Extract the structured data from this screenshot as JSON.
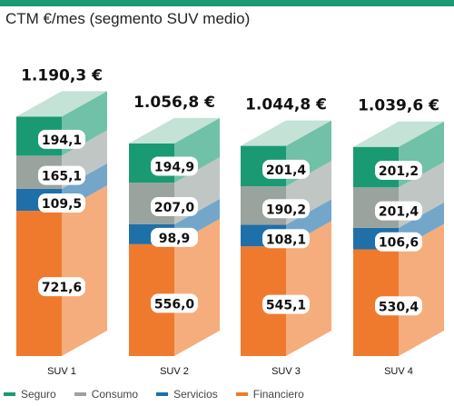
{
  "title": "CTM €/mes (segmento SUV medio)",
  "chart_data": {
    "type": "bar",
    "stacked": true,
    "categories": [
      "SUV 1",
      "SUV 2",
      "SUV 3",
      "SUV 4"
    ],
    "totals": [
      "1.190,3 €",
      "1.056,8 €",
      "1.044,8 €",
      "1.039,6 €"
    ],
    "series": [
      {
        "name": "Seguro",
        "color": "#1a9a73",
        "values": [
          194.1,
          194.9,
          201.4,
          201.2
        ],
        "labels": [
          "194,1",
          "194,9",
          "201,4",
          "201,2"
        ]
      },
      {
        "name": "Consumo",
        "color": "#9aa39e",
        "values": [
          165.1,
          207.0,
          190.2,
          201.4
        ],
        "labels": [
          "165,1",
          "207,0",
          "190,2",
          "201,4"
        ]
      },
      {
        "name": "Servicios",
        "color": "#1f6fa8",
        "values": [
          109.5,
          98.9,
          108.1,
          106.6
        ],
        "labels": [
          "109,5",
          "98,9",
          "108,1",
          "106,6"
        ]
      },
      {
        "name": "Financiero",
        "color": "#ef7a2e",
        "values": [
          721.6,
          556.0,
          545.1,
          530.4
        ],
        "labels": [
          "721,6",
          "556,0",
          "545,1",
          "530,4"
        ]
      }
    ],
    "legend_position": "bottom-left"
  }
}
